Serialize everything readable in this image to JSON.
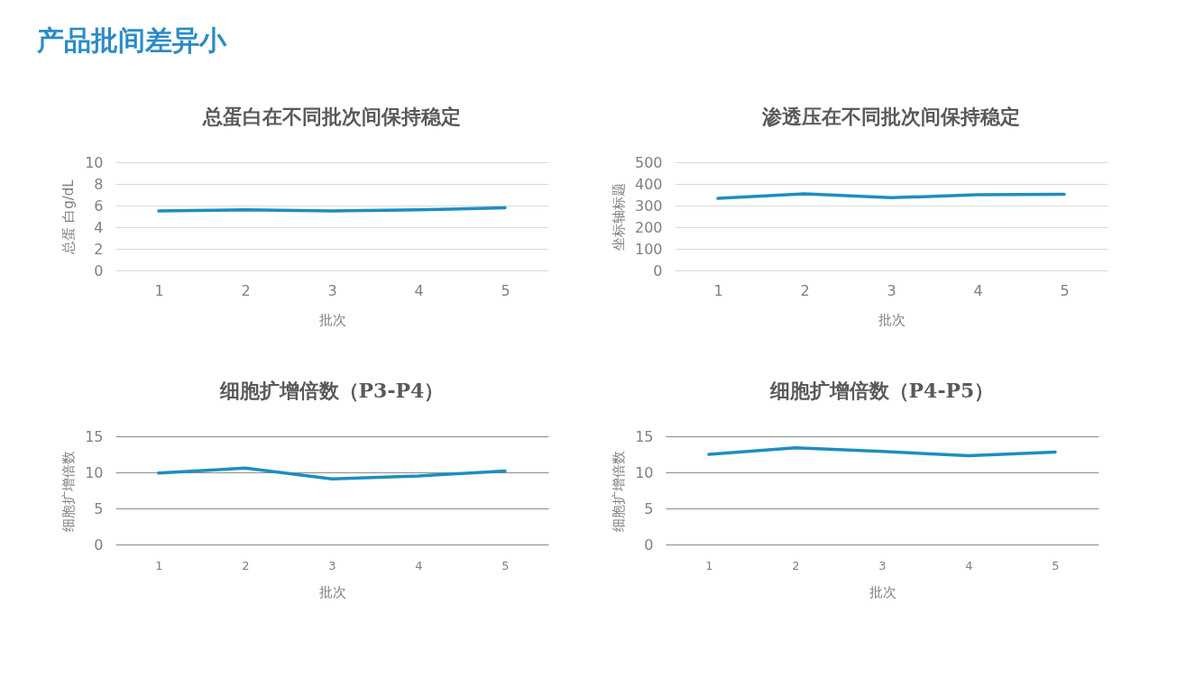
{
  "chart_data": [
    {
      "type": "other",
      "title": "产品批间差异小"
    },
    {
      "type": "line",
      "title": "总蛋白在不同批次间保持稳定",
      "xlabel": "批次",
      "ylabel": "总蛋 白g/dL",
      "categories": [
        "1",
        "2",
        "3",
        "4",
        "5"
      ],
      "series": [
        {
          "color": "#1f8dbf",
          "values": [
            5.5,
            5.6,
            5.5,
            5.6,
            5.8
          ]
        }
      ],
      "ylim": [
        0,
        10
      ],
      "yticks": [
        0,
        2,
        4,
        6,
        8,
        10
      ],
      "grid": "y"
    },
    {
      "type": "line",
      "title": "渗透压在不同批次间保持稳定",
      "xlabel": "批次",
      "ylabel": "坐标轴标题",
      "categories": [
        "1",
        "2",
        "3",
        "4",
        "5"
      ],
      "series": [
        {
          "color": "#1f8dbf",
          "values": [
            333,
            354,
            336,
            350,
            352
          ]
        }
      ],
      "ylim": [
        0,
        500
      ],
      "yticks": [
        0,
        100,
        200,
        300,
        400,
        500
      ],
      "grid": "y"
    },
    {
      "type": "line",
      "title": "细胞扩增倍数（P3-P4）",
      "xlabel": "批次",
      "ylabel": "细胞扩增倍数",
      "categories": [
        "1",
        "2",
        "3",
        "4",
        "5"
      ],
      "series": [
        {
          "color": "#1f8dbf",
          "values": [
            9.9,
            10.6,
            9.1,
            9.5,
            10.2
          ]
        }
      ],
      "ylim": [
        0,
        15
      ],
      "yticks": [
        0,
        5,
        10,
        15
      ],
      "grid": "y"
    },
    {
      "type": "line",
      "title": "细胞扩增倍数（P4-P5）",
      "xlabel": "批次",
      "ylabel": "细胞扩增倍数",
      "categories": [
        "1",
        "2",
        "3",
        "4",
        "5"
      ],
      "series": [
        {
          "color": "#1f8dbf",
          "values": [
            12.5,
            13.4,
            12.9,
            12.3,
            12.8
          ]
        }
      ],
      "ylim": [
        0,
        15
      ],
      "yticks": [
        0,
        5,
        10,
        15
      ],
      "grid": "y"
    }
  ]
}
